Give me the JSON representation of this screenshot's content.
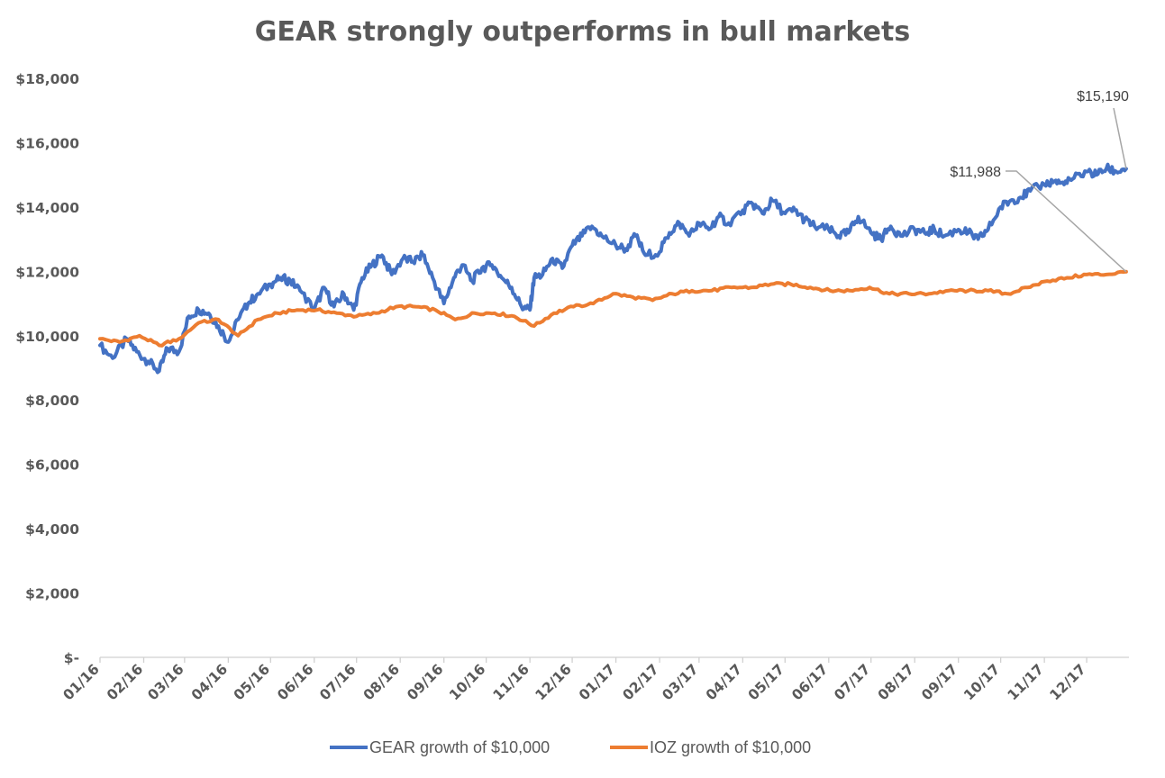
{
  "chart_data": {
    "type": "line",
    "title": "GEAR strongly outperforms in bull markets",
    "xlabel": "",
    "ylabel": "",
    "ylim": [
      0,
      18000
    ],
    "y_ticks": [
      {
        "value": 0,
        "label": "$-"
      },
      {
        "value": 2000,
        "label": "$2,000"
      },
      {
        "value": 4000,
        "label": "$4,000"
      },
      {
        "value": 6000,
        "label": "$6,000"
      },
      {
        "value": 8000,
        "label": "$8,000"
      },
      {
        "value": 10000,
        "label": "$10,000"
      },
      {
        "value": 12000,
        "label": "$12,000"
      },
      {
        "value": 14000,
        "label": "$14,000"
      },
      {
        "value": 16000,
        "label": "$16,000"
      },
      {
        "value": 18000,
        "label": "$18,000"
      }
    ],
    "x_ticks": [
      "01/16",
      "02/16",
      "03/16",
      "04/16",
      "05/16",
      "06/16",
      "07/16",
      "08/16",
      "09/16",
      "10/16",
      "11/16",
      "12/16",
      "01/17",
      "02/17",
      "03/17",
      "04/17",
      "05/17",
      "06/17",
      "07/17",
      "08/17",
      "09/17",
      "10/17",
      "11/17",
      "12/17"
    ],
    "grid": false,
    "legend_position": "bottom",
    "series": [
      {
        "name": "GEAR growth of $10,000",
        "color": "#4472C4",
        "x": [
          "2016-01-01",
          "2016-01-10",
          "2016-01-20",
          "2016-01-27",
          "2016-02-04",
          "2016-02-12",
          "2016-02-18",
          "2016-02-26",
          "2016-03-04",
          "2016-03-11",
          "2016-03-18",
          "2016-03-25",
          "2016-04-01",
          "2016-04-08",
          "2016-04-15",
          "2016-04-22",
          "2016-05-01",
          "2016-05-08",
          "2016-05-15",
          "2016-05-22",
          "2016-06-01",
          "2016-06-08",
          "2016-06-15",
          "2016-06-22",
          "2016-06-29",
          "2016-07-05",
          "2016-07-12",
          "2016-07-19",
          "2016-07-26",
          "2016-08-03",
          "2016-08-10",
          "2016-08-17",
          "2016-08-24",
          "2016-09-01",
          "2016-09-08",
          "2016-09-14",
          "2016-09-21",
          "2016-09-28",
          "2016-10-05",
          "2016-10-12",
          "2016-10-19",
          "2016-10-26",
          "2016-11-01",
          "2016-11-04",
          "2016-11-10",
          "2016-11-17",
          "2016-11-24",
          "2016-12-01",
          "2016-12-08",
          "2016-12-15",
          "2016-12-22",
          "2017-01-01",
          "2017-01-08",
          "2017-01-15",
          "2017-01-22",
          "2017-02-01",
          "2017-02-08",
          "2017-02-15",
          "2017-02-22",
          "2017-03-01",
          "2017-03-08",
          "2017-03-15",
          "2017-03-22",
          "2017-04-01",
          "2017-04-08",
          "2017-04-15",
          "2017-04-22",
          "2017-05-01",
          "2017-05-08",
          "2017-05-15",
          "2017-05-22",
          "2017-06-01",
          "2017-06-08",
          "2017-06-15",
          "2017-06-22",
          "2017-07-01",
          "2017-07-08",
          "2017-07-15",
          "2017-07-22",
          "2017-08-01",
          "2017-08-08",
          "2017-08-15",
          "2017-08-22",
          "2017-09-01",
          "2017-09-08",
          "2017-09-15",
          "2017-09-22",
          "2017-10-01",
          "2017-10-08",
          "2017-10-15",
          "2017-10-22",
          "2017-11-01",
          "2017-11-08",
          "2017-11-15",
          "2017-11-22",
          "2017-12-01",
          "2017-12-08",
          "2017-12-15",
          "2017-12-22",
          "2017-12-29"
        ],
        "values": [
          9700,
          9300,
          9900,
          9500,
          9200,
          8900,
          9600,
          9500,
          10600,
          10800,
          10700,
          10300,
          9800,
          10500,
          11000,
          11300,
          11600,
          11800,
          11700,
          11400,
          10800,
          11500,
          10900,
          11300,
          10800,
          11800,
          12200,
          12500,
          11900,
          12400,
          12300,
          12500,
          11800,
          11000,
          11800,
          12200,
          11700,
          12100,
          12200,
          11800,
          11500,
          10900,
          10800,
          11800,
          11900,
          12400,
          12100,
          12800,
          13100,
          13400,
          13100,
          12800,
          12700,
          13100,
          12500,
          12600,
          13200,
          13500,
          13100,
          13500,
          13300,
          13700,
          13500,
          13900,
          14100,
          13800,
          14200,
          13800,
          13900,
          13600,
          13400,
          13300,
          13100,
          13200,
          13700,
          13200,
          13000,
          13400,
          13100,
          13300,
          13200,
          13300,
          13100,
          13300,
          13200,
          13000,
          13300,
          14000,
          14200,
          14300,
          14500,
          14700,
          14800,
          14700,
          14900,
          15100,
          15000,
          15200,
          15100,
          15190
        ]
      },
      {
        "name": "IOZ growth of $10,000",
        "color": "#ED7D31",
        "x": [
          "2016-01-01",
          "2016-01-15",
          "2016-01-29",
          "2016-02-12",
          "2016-02-26",
          "2016-03-11",
          "2016-03-25",
          "2016-04-08",
          "2016-04-22",
          "2016-05-06",
          "2016-05-20",
          "2016-06-03",
          "2016-06-17",
          "2016-07-01",
          "2016-07-15",
          "2016-07-29",
          "2016-08-12",
          "2016-08-26",
          "2016-09-09",
          "2016-09-23",
          "2016-10-07",
          "2016-10-21",
          "2016-11-04",
          "2016-11-18",
          "2016-12-02",
          "2016-12-16",
          "2016-12-30",
          "2017-01-13",
          "2017-01-27",
          "2017-02-10",
          "2017-02-24",
          "2017-03-10",
          "2017-03-24",
          "2017-04-07",
          "2017-04-21",
          "2017-05-05",
          "2017-05-19",
          "2017-06-02",
          "2017-06-16",
          "2017-06-30",
          "2017-07-14",
          "2017-07-28",
          "2017-08-11",
          "2017-08-25",
          "2017-09-08",
          "2017-09-22",
          "2017-10-06",
          "2017-10-20",
          "2017-11-03",
          "2017-11-17",
          "2017-12-01",
          "2017-12-15",
          "2017-12-29"
        ],
        "values": [
          9900,
          9800,
          10000,
          9700,
          9900,
          10400,
          10500,
          10000,
          10500,
          10700,
          10800,
          10800,
          10700,
          10600,
          10700,
          10900,
          10900,
          10800,
          10500,
          10700,
          10700,
          10600,
          10300,
          10700,
          10900,
          11000,
          11300,
          11200,
          11100,
          11300,
          11400,
          11400,
          11500,
          11500,
          11600,
          11600,
          11500,
          11400,
          11400,
          11500,
          11300,
          11300,
          11300,
          11400,
          11400,
          11400,
          11300,
          11500,
          11700,
          11800,
          11900,
          11900,
          11988
        ]
      }
    ],
    "annotations": [
      {
        "label": "$15,190",
        "series": 0
      },
      {
        "label": "$11,988",
        "series": 1
      }
    ]
  }
}
